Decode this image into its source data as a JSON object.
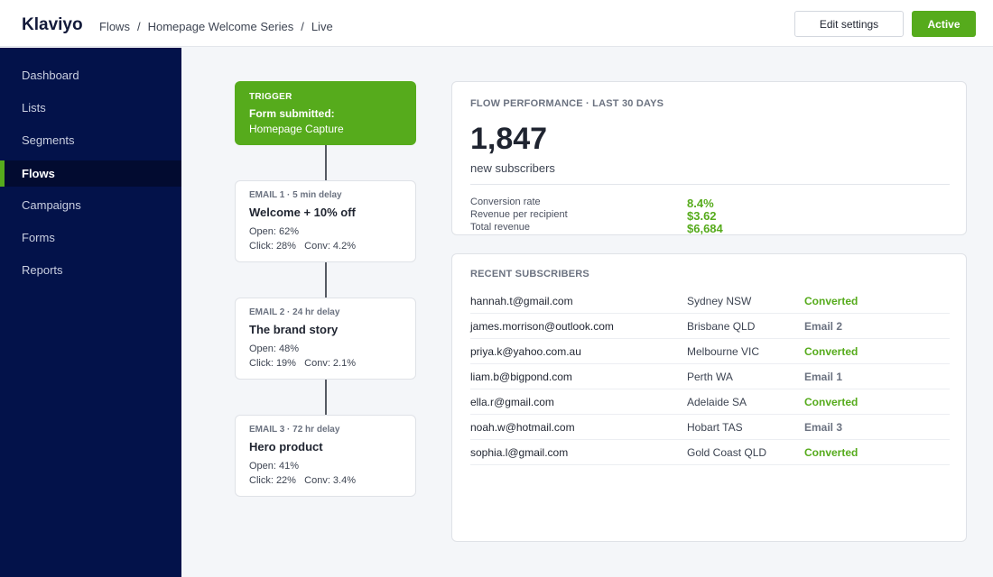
{
  "app": {
    "name": "Klaviyo"
  },
  "breadcrumb": [
    "Flows",
    "Homepage Welcome Series",
    "Live"
  ],
  "header": {
    "edit_label": "Edit settings",
    "status_label": "Active"
  },
  "sidebar": {
    "items": [
      {
        "label": "Dashboard",
        "active": false
      },
      {
        "label": "Lists",
        "active": false
      },
      {
        "label": "Segments",
        "active": false
      },
      {
        "label": "Flows",
        "active": true
      },
      {
        "label": "Campaigns",
        "active": false
      },
      {
        "label": "Forms",
        "active": false
      },
      {
        "label": "Reports",
        "active": false
      }
    ]
  },
  "flow": {
    "trigger": {
      "label": "TRIGGER",
      "title": "Form submitted:",
      "subtitle": "Homepage Capture"
    },
    "emails": [
      {
        "header": "EMAIL 1 · 5 min delay",
        "title": "Welcome + 10% off",
        "open": "Open: 62%",
        "click": "Click: 28%",
        "conv": "Conv: 4.2%"
      },
      {
        "header": "EMAIL 2 · 24 hr delay",
        "title": "The brand story",
        "open": "Open: 48%",
        "click": "Click: 19%",
        "conv": "Conv: 2.1%"
      },
      {
        "header": "EMAIL 3 · 72 hr delay",
        "title": "Hero product",
        "open": "Open: 41%",
        "click": "Click: 22%",
        "conv": "Conv: 3.4%"
      }
    ]
  },
  "performance": {
    "title": "FLOW PERFORMANCE · LAST 30 DAYS",
    "big_number": "1,847",
    "big_label": "new subscribers",
    "metrics": [
      {
        "label": "Conversion rate",
        "value": "8.4%"
      },
      {
        "label": "Revenue per recipient",
        "value": "$3.62"
      },
      {
        "label": "Total revenue",
        "value": "$6,684"
      }
    ]
  },
  "recent": {
    "title": "RECENT SUBSCRIBERS",
    "rows": [
      {
        "email": "hannah.t@gmail.com",
        "location": "Sydney NSW",
        "status": "Converted"
      },
      {
        "email": "james.morrison@outlook.com",
        "location": "Brisbane QLD",
        "status": "Email 2"
      },
      {
        "email": "priya.k@yahoo.com.au",
        "location": "Melbourne VIC",
        "status": "Converted"
      },
      {
        "email": "liam.b@bigpond.com",
        "location": "Perth WA",
        "status": "Email 1"
      },
      {
        "email": "ella.r@gmail.com",
        "location": "Adelaide SA",
        "status": "Converted"
      },
      {
        "email": "noah.w@hotmail.com",
        "location": "Hobart TAS",
        "status": "Email 3"
      },
      {
        "email": "sophia.l@gmail.com",
        "location": "Gold Coast QLD",
        "status": "Converted"
      }
    ]
  },
  "colors": {
    "brand_green": "#56ab1c",
    "sidebar_bg": "#03124a",
    "muted_status": "#6b7280"
  }
}
